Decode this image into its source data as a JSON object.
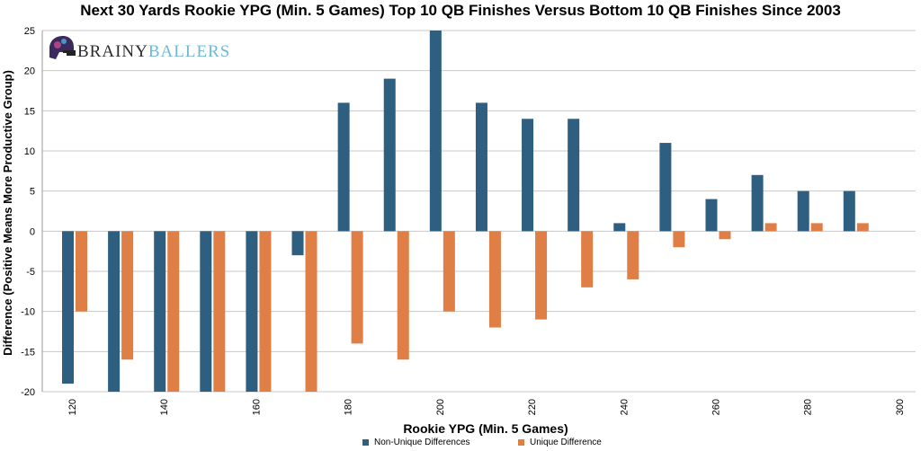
{
  "chart_data": {
    "type": "bar",
    "title": "Next 30 Yards Rookie YPG (Min. 5 Games) Top 10 QB Finishes Versus Bottom 10 QB Finishes Since 2003",
    "xlabel": "Rookie YPG (Min. 5 Games)",
    "ylabel": "Difference (Positive Means More Productive Group)",
    "categories": [
      120,
      130,
      140,
      150,
      160,
      170,
      180,
      190,
      200,
      210,
      220,
      230,
      240,
      250,
      260,
      270,
      280,
      290,
      300
    ],
    "x_tick_labels": [
      "120",
      "140",
      "160",
      "180",
      "200",
      "220",
      "240",
      "260",
      "280",
      "300"
    ],
    "y_ticks": [
      "25",
      "20",
      "15",
      "10",
      "5",
      "0",
      "-5",
      "-10",
      "-15",
      "-20"
    ],
    "ylim": [
      -20,
      25
    ],
    "grid": true,
    "legend_position": "bottom",
    "series": [
      {
        "name": "Non-Unique Differences",
        "color": "#2e5e80",
        "values": [
          -19,
          -20,
          -20,
          -20,
          -20,
          -3,
          16,
          19,
          25,
          16,
          14,
          14,
          1,
          11,
          4,
          7,
          5,
          5,
          null
        ]
      },
      {
        "name": "Unique Difference",
        "color": "#e07f45",
        "values": [
          -10,
          -16,
          -20,
          -20,
          -20,
          -20,
          -14,
          -16,
          -10,
          -12,
          -11,
          -7,
          -6,
          -2,
          -1,
          1,
          1,
          1,
          null
        ]
      }
    ]
  },
  "logo": {
    "part1": "BRAINY",
    "part2": "BALLERS",
    "color1": "#2a2a2a",
    "color2": "#6fb8d8"
  }
}
